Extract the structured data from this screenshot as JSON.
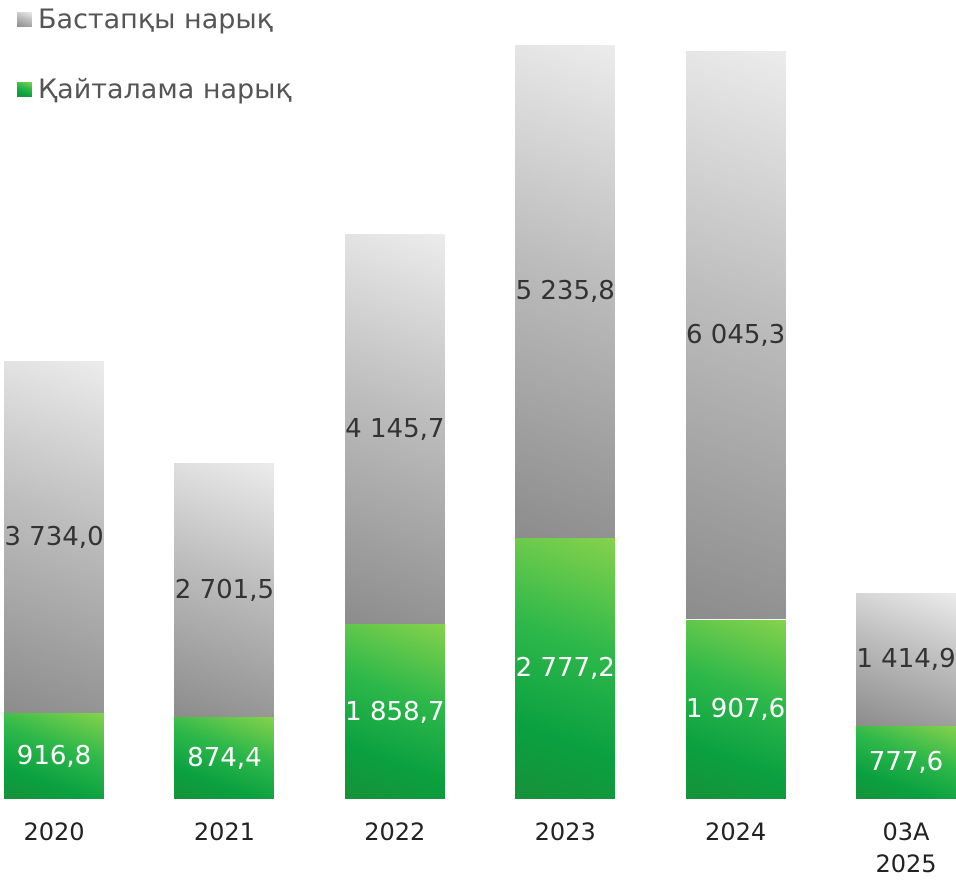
{
  "chart_data": {
    "type": "stacked_bar",
    "categories": [
      "2020",
      "2021",
      "2022",
      "2023",
      "2024",
      "03А 2025"
    ],
    "series": [
      {
        "name": "Қайталама нарық",
        "color": "#10a53f",
        "values": [
          916.8,
          874.4,
          1858.7,
          2777.2,
          1907.6,
          777.6
        ],
        "value_labels": [
          "916,8",
          "874,4",
          "1 858,7",
          "2 777,2",
          "1 907,6",
          "777,6"
        ]
      },
      {
        "name": "Бастапқы нарық",
        "color": "#a8a8a8",
        "values": [
          3734.0,
          2701.5,
          4145.7,
          5235.8,
          6045.3,
          1414.9
        ],
        "value_labels": [
          "3 734,0",
          "2 701,5",
          "4 145,7",
          "5 235,8",
          "6 045,3",
          "1 414,9"
        ]
      }
    ]
  }
}
